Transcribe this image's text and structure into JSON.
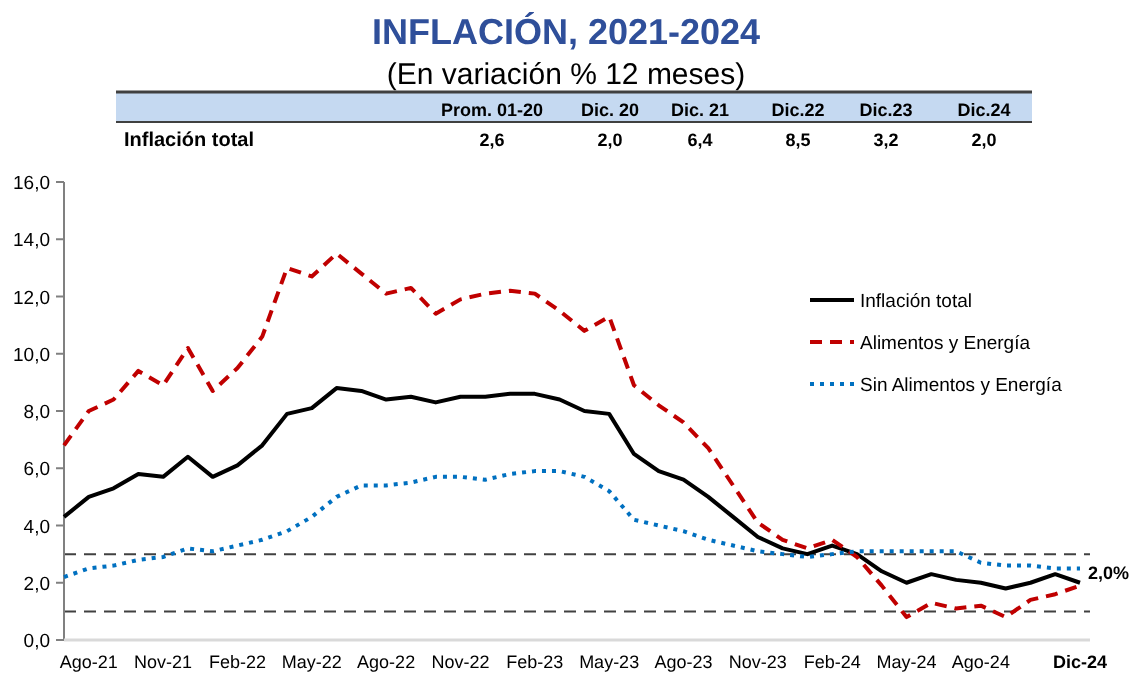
{
  "chart_data": {
    "type": "line",
    "title": "INFLACIÓN, 2021-2024",
    "subtitle": "(En variación % 12 meses)",
    "categories": [
      null,
      "Ago-21",
      null,
      null,
      "Nov-21",
      null,
      null,
      "Feb-22",
      null,
      null,
      "May-22",
      null,
      null,
      "Ago-22",
      null,
      null,
      "Nov-22",
      null,
      null,
      "Feb-23",
      null,
      null,
      "May-23",
      null,
      null,
      "Ago-23",
      null,
      null,
      "Nov-23",
      null,
      null,
      "Feb-24",
      null,
      null,
      "May-24",
      null,
      null,
      "Ago-24",
      null,
      null,
      null,
      "Dic-24"
    ],
    "series": [
      {
        "name": "Inflación total",
        "color": "#000000",
        "line_style": "solid",
        "values": [
          4.3,
          5.0,
          5.3,
          5.8,
          5.7,
          6.4,
          5.7,
          6.1,
          6.8,
          7.9,
          8.1,
          8.8,
          8.7,
          8.4,
          8.5,
          8.3,
          8.5,
          8.5,
          8.6,
          8.6,
          8.4,
          8.0,
          7.9,
          6.5,
          5.9,
          5.6,
          5.0,
          4.3,
          3.6,
          3.2,
          3.0,
          3.3,
          3.0,
          2.4,
          2.0,
          2.3,
          2.1,
          2.0,
          1.8,
          2.0,
          2.3,
          2.0
        ]
      },
      {
        "name": "Alimentos y Energía",
        "color": "#c00000",
        "line_style": "dashed",
        "values": [
          6.8,
          8.0,
          8.4,
          9.4,
          8.9,
          10.2,
          8.7,
          9.5,
          10.6,
          13.0,
          12.7,
          13.5,
          12.8,
          12.1,
          12.3,
          11.4,
          11.9,
          12.1,
          12.2,
          12.1,
          11.5,
          10.8,
          11.3,
          8.9,
          8.2,
          7.6,
          6.7,
          5.4,
          4.1,
          3.5,
          3.2,
          3.5,
          2.9,
          1.9,
          0.8,
          1.3,
          1.1,
          1.2,
          0.8,
          1.4,
          1.6,
          1.9
        ]
      },
      {
        "name": "Sin Alimentos y Energía",
        "color": "#0070c0",
        "line_style": "dotted",
        "values": [
          2.2,
          2.5,
          2.6,
          2.8,
          2.9,
          3.2,
          3.1,
          3.3,
          3.5,
          3.8,
          4.3,
          5.0,
          5.4,
          5.4,
          5.5,
          5.7,
          5.7,
          5.6,
          5.8,
          5.9,
          5.9,
          5.7,
          5.2,
          4.2,
          4.0,
          3.8,
          3.5,
          3.3,
          3.1,
          3.0,
          2.9,
          3.0,
          3.1,
          3.1,
          3.1,
          3.1,
          3.1,
          2.7,
          2.6,
          2.6,
          2.5,
          2.5
        ]
      }
    ],
    "ylim": [
      0,
      16
    ],
    "yticks": [
      {
        "value": 0,
        "label": "0,0"
      },
      {
        "value": 2,
        "label": "2,0"
      },
      {
        "value": 4,
        "label": "4,0"
      },
      {
        "value": 6,
        "label": "6,0"
      },
      {
        "value": 8,
        "label": "8,0"
      },
      {
        "value": 10,
        "label": "10,0"
      },
      {
        "value": 12,
        "label": "12,0"
      },
      {
        "value": 14,
        "label": "14,0"
      },
      {
        "value": 16,
        "label": "16,0"
      }
    ],
    "grid": false,
    "legend": "right",
    "marker": "none",
    "ref_lines": [
      {
        "axis": "y",
        "value": 3,
        "color": "#404040",
        "line_style": "dashed"
      },
      {
        "axis": "y",
        "value": 1,
        "color": "#404040",
        "line_style": "dashed"
      }
    ],
    "annotations": [
      "Inflación total",
      "Prom. 01-20",
      "Dic. 20",
      "Dic. 21",
      "Dic.22",
      "Dic.23",
      "Dic.24",
      "2,6",
      "2,0",
      "6,4",
      "8,5",
      "3,2",
      "2,0",
      {
        "text": "2,0%",
        "x": "Dic-24",
        "y": 2.0
      }
    ]
  }
}
